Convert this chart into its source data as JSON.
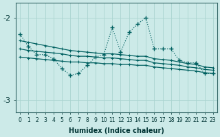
{
  "xlabel": "Humidex (Indice chaleur)",
  "bg_color": "#cceae8",
  "grid_color": "#aad4d0",
  "line_color": "#006060",
  "x": [
    0,
    1,
    2,
    3,
    4,
    5,
    6,
    7,
    8,
    9,
    10,
    11,
    12,
    13,
    14,
    15,
    16,
    17,
    18,
    19,
    20,
    21,
    22,
    23
  ],
  "series_main": [
    -2.2,
    -2.35,
    -2.45,
    -2.45,
    -2.5,
    -2.62,
    -2.7,
    -2.68,
    -2.58,
    -2.48,
    -2.45,
    -2.12,
    -2.42,
    -2.18,
    -2.08,
    -2.0,
    -2.38,
    -2.38,
    -2.38,
    -2.52,
    -2.55,
    -2.55,
    -2.68,
    -2.68
  ],
  "series_reg1": [
    -2.28,
    -2.3,
    -2.32,
    -2.34,
    -2.36,
    -2.38,
    -2.4,
    -2.41,
    -2.42,
    -2.43,
    -2.44,
    -2.44,
    -2.45,
    -2.46,
    -2.47,
    -2.47,
    -2.5,
    -2.51,
    -2.52,
    -2.54,
    -2.56,
    -2.57,
    -2.6,
    -2.61
  ],
  "series_reg2": [
    -2.38,
    -2.4,
    -2.41,
    -2.42,
    -2.43,
    -2.44,
    -2.46,
    -2.47,
    -2.47,
    -2.48,
    -2.49,
    -2.49,
    -2.5,
    -2.51,
    -2.52,
    -2.52,
    -2.55,
    -2.56,
    -2.57,
    -2.58,
    -2.6,
    -2.61,
    -2.63,
    -2.64
  ],
  "series_reg3": [
    -2.48,
    -2.49,
    -2.5,
    -2.51,
    -2.52,
    -2.53,
    -2.54,
    -2.54,
    -2.55,
    -2.55,
    -2.56,
    -2.56,
    -2.57,
    -2.57,
    -2.58,
    -2.58,
    -2.6,
    -2.61,
    -2.62,
    -2.63,
    -2.64,
    -2.65,
    -2.67,
    -2.68
  ],
  "ylim": [
    -3.15,
    -1.82
  ],
  "yticks": [
    -3,
    -2
  ],
  "figsize": [
    3.2,
    2.0
  ],
  "dpi": 100
}
